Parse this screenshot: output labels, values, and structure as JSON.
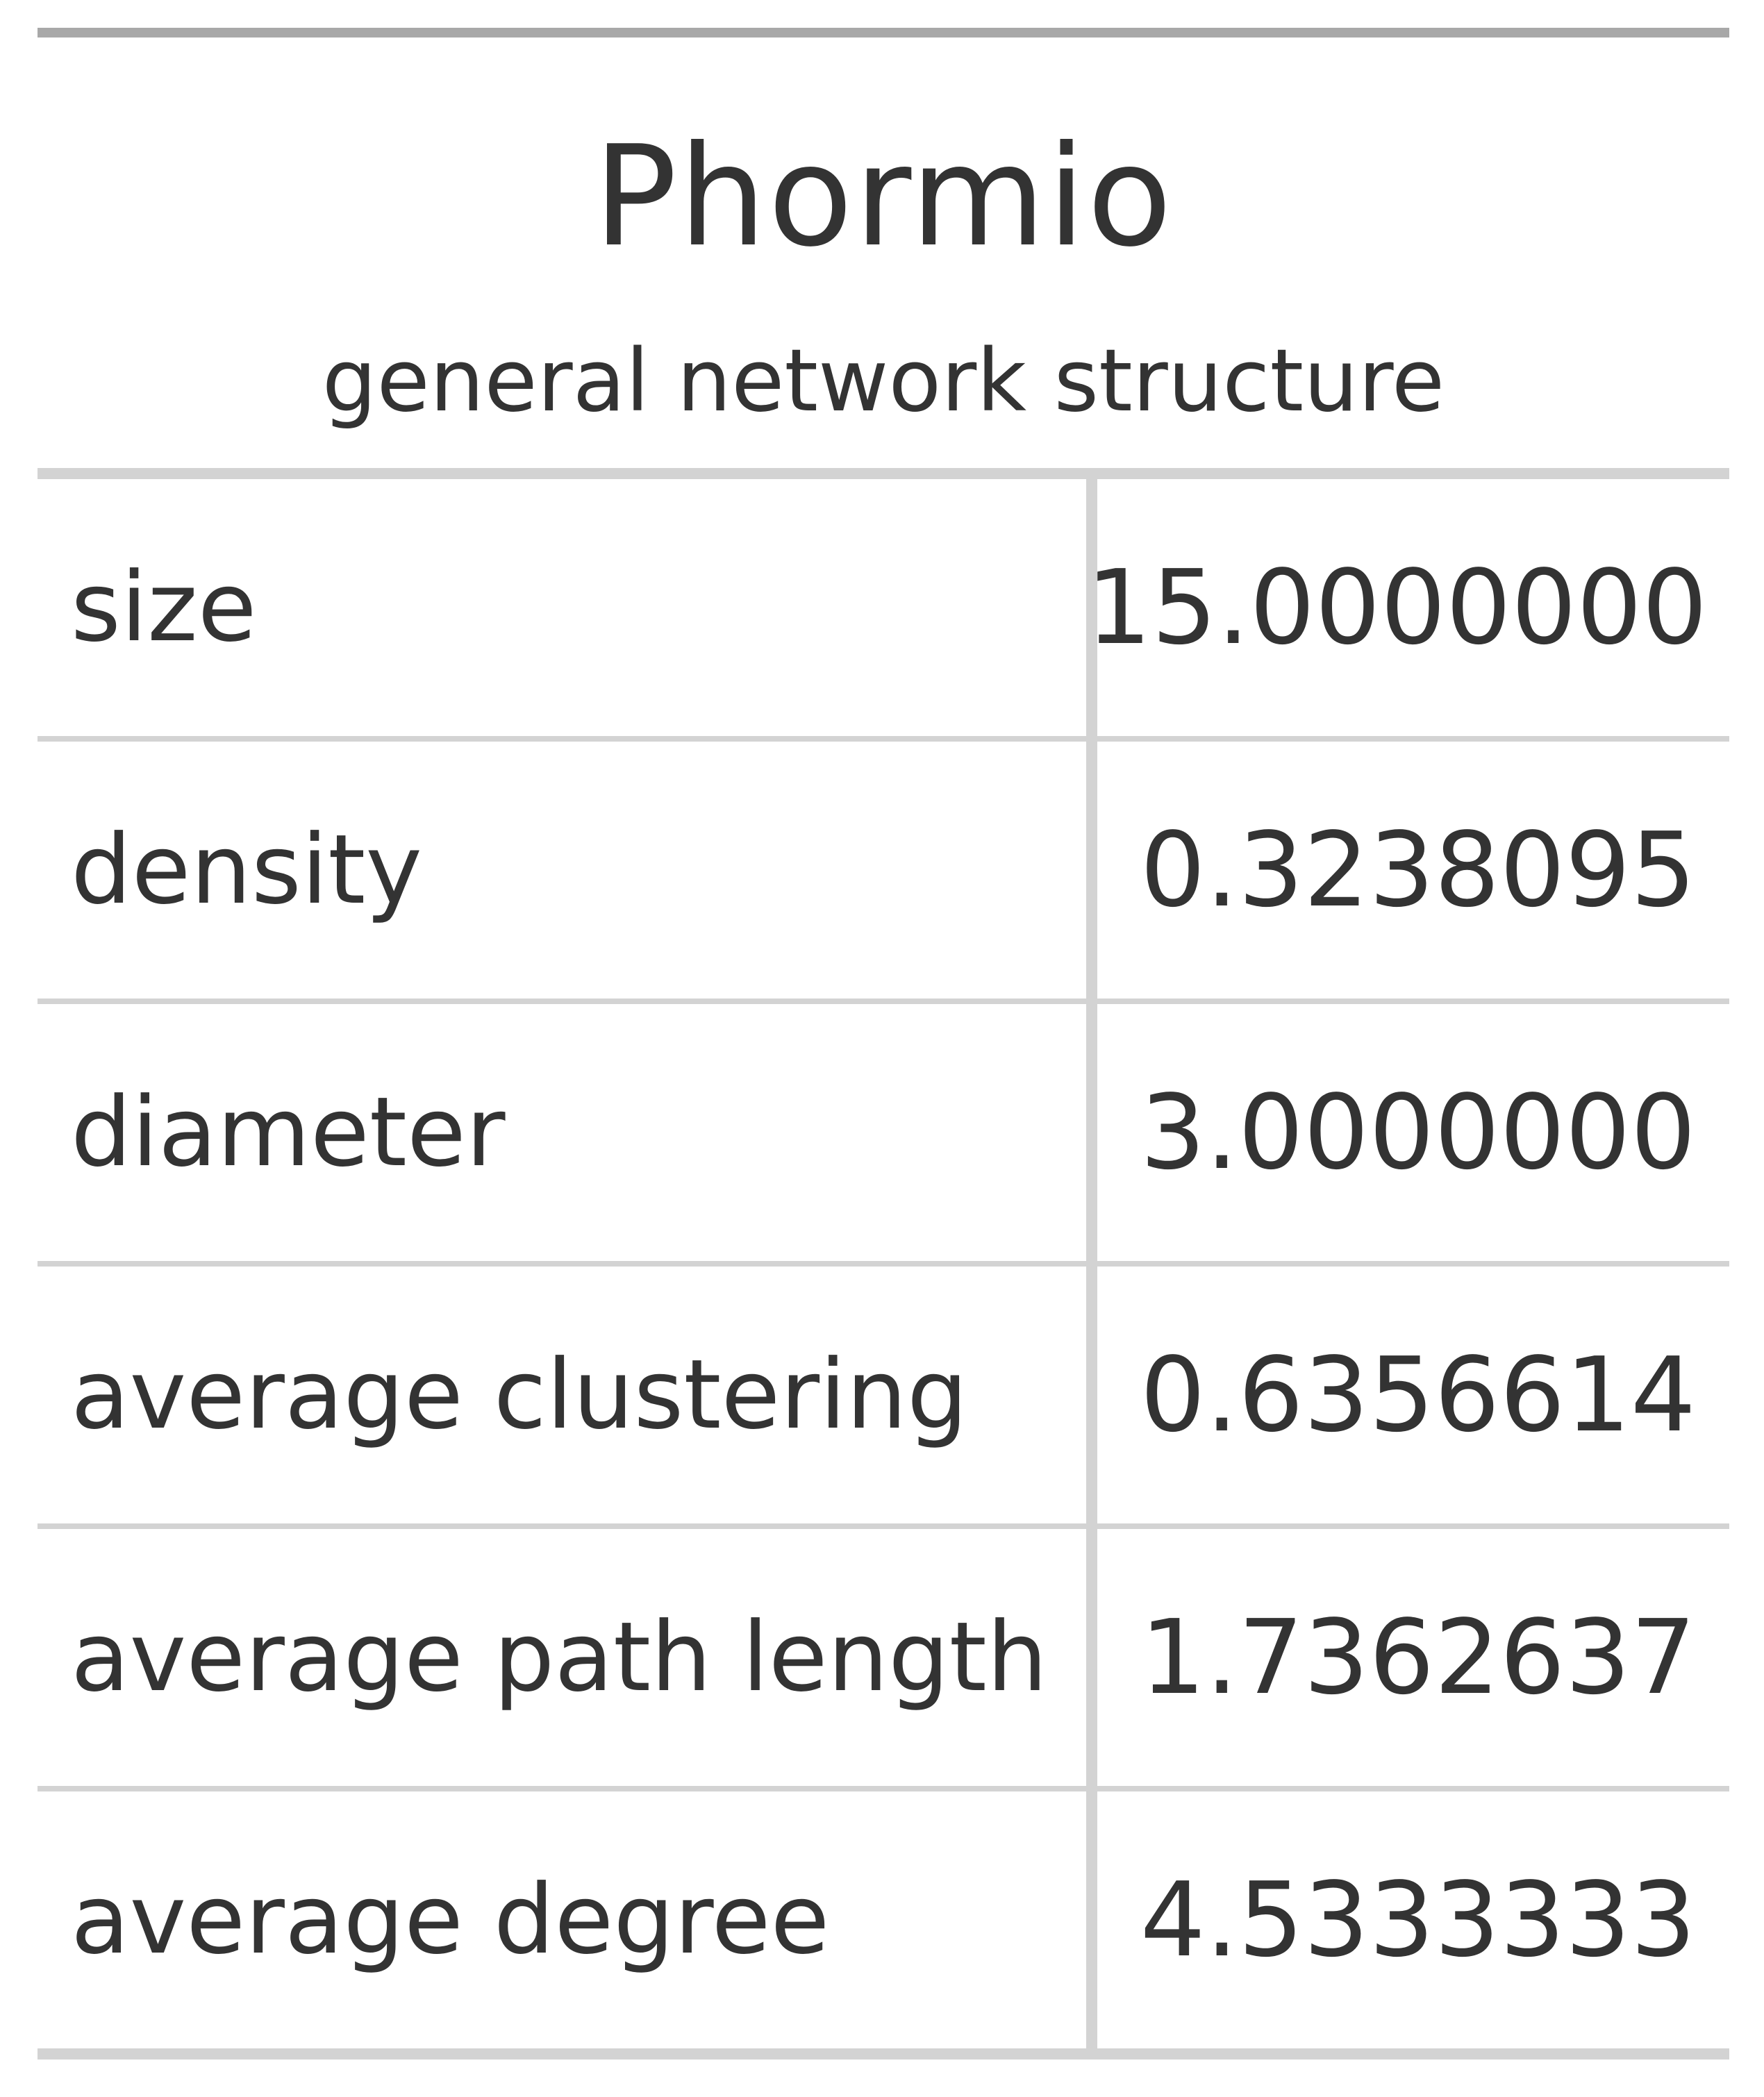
{
  "table": {
    "title": "Phormio",
    "subtitle": "general network structure",
    "rows": [
      {
        "label": "size",
        "value": "15.0000000"
      },
      {
        "label": "density",
        "value": "0.3238095"
      },
      {
        "label": "diameter",
        "value": "3.0000000"
      },
      {
        "label": "average clustering",
        "value": "0.6356614"
      },
      {
        "label": "average path length",
        "value": "1.7362637"
      },
      {
        "label": "average degree",
        "value": "4.5333333"
      }
    ]
  },
  "colors": {
    "text": "#333333",
    "top_rule": "#a8a8a8",
    "rule": "#d3d3d3",
    "background": "#ffffff"
  }
}
